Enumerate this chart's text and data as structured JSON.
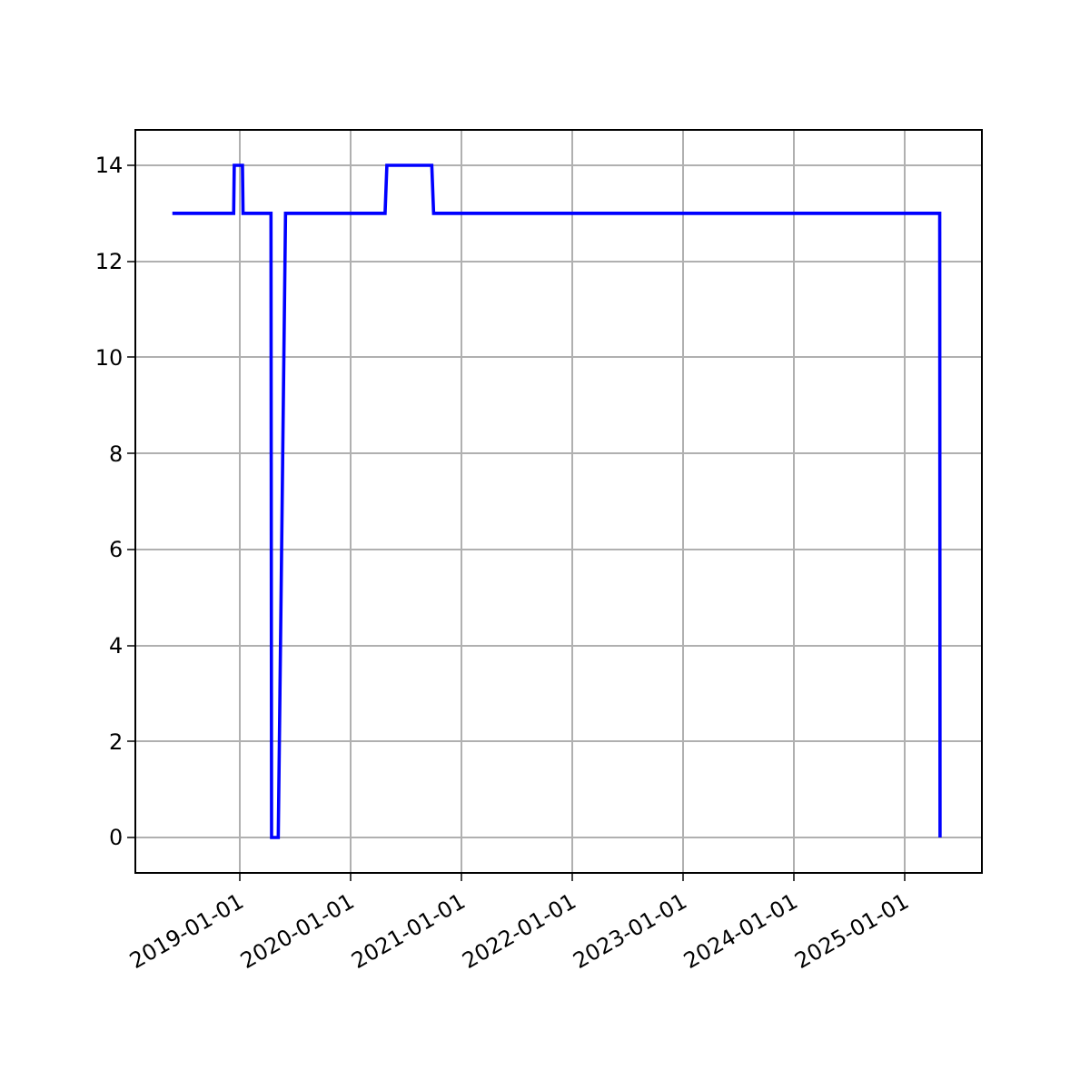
{
  "chart_data": {
    "type": "line",
    "x": [
      "2018-05-24",
      "2018-12-12",
      "2018-12-14",
      "2019-01-10",
      "2019-01-12",
      "2019-04-14",
      "2019-04-16",
      "2019-05-08",
      "2019-06-01",
      "2020-04-24",
      "2020-04-30",
      "2020-09-25",
      "2020-10-01",
      "2025-04-26",
      "2025-04-27"
    ],
    "series": [
      {
        "color": "#0000ff",
        "values": [
          13,
          13,
          14,
          14,
          13,
          13,
          0,
          0,
          13,
          13,
          14,
          14,
          13,
          13,
          0
        ]
      }
    ],
    "xlim": [
      "2018-01-25",
      "2025-09-09"
    ],
    "xticks": [
      "2019-01-01",
      "2020-01-01",
      "2021-01-01",
      "2022-01-01",
      "2023-01-01",
      "2024-01-01",
      "2025-01-01"
    ],
    "ylim": [
      -0.72,
      14.72
    ],
    "yticks": [
      0,
      2,
      4,
      6,
      8,
      10,
      12,
      14
    ],
    "grid": true,
    "legend": false,
    "marker": "none",
    "line_style": "solid"
  }
}
